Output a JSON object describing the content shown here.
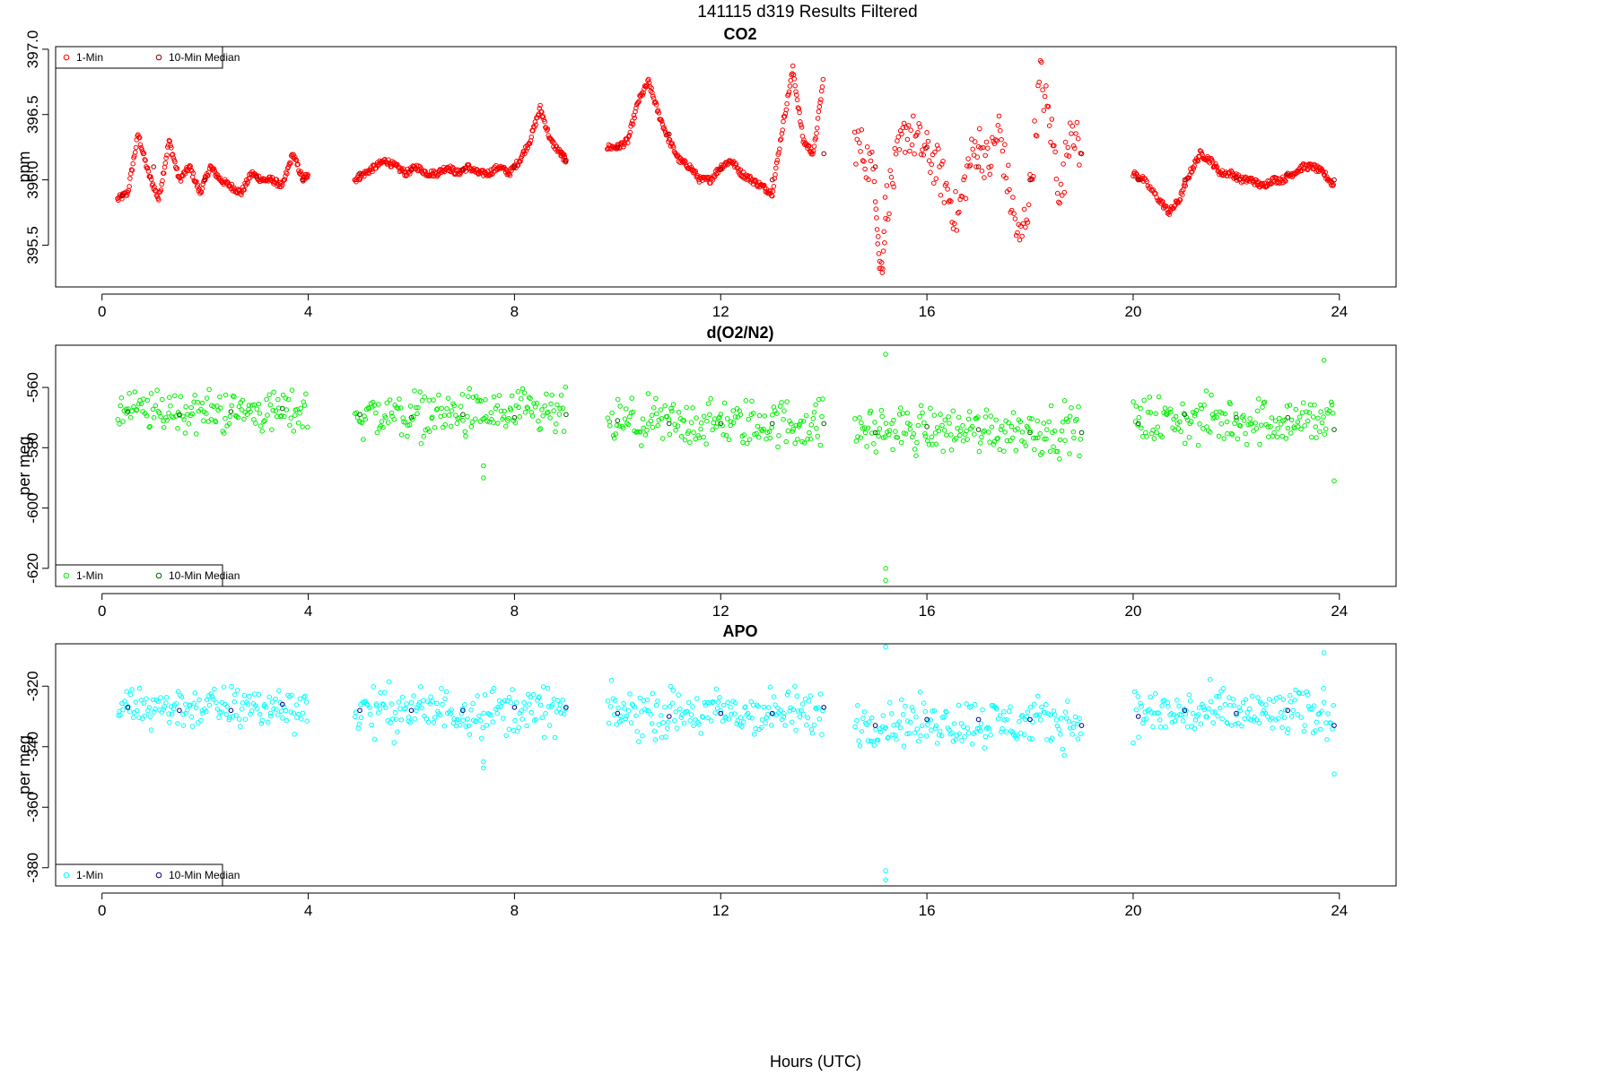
{
  "figure": {
    "title": "141115   d319   Results Filtered",
    "xlabel": "Hours (UTC)"
  },
  "chart_data": [
    {
      "type": "scatter",
      "title": "CO2",
      "xlabel": "Hours (UTC)",
      "ylabel": "ppm",
      "xlim": [
        -0.9,
        25.1
      ],
      "ylim": [
        395.18,
        397.02
      ],
      "xticks": [
        0,
        4,
        8,
        12,
        16,
        20,
        24
      ],
      "yticks": [
        395.5,
        396.0,
        396.5,
        397.0
      ],
      "ytick_labels": [
        "395.5",
        "396.0",
        "396.5",
        "397.0"
      ],
      "legend": {
        "placement": "top-left",
        "entries": [
          "1-Min",
          "10-Min Median"
        ]
      },
      "grid": false,
      "series": [
        {
          "name": "1-Min",
          "color": "#ff0000",
          "segments": [
            {
              "x": [
                0.3,
                0.5,
                0.7,
                0.9,
                1.1,
                1.3,
                1.5,
                1.7,
                1.9,
                2.1,
                2.3,
                2.5,
                2.7,
                2.9,
                3.1,
                3.3,
                3.5,
                3.7,
                3.9,
                4.0
              ],
              "y": [
                395.85,
                395.9,
                396.35,
                396.05,
                395.85,
                396.3,
                396.0,
                396.1,
                395.9,
                396.1,
                396.0,
                395.95,
                395.9,
                396.05,
                396.0,
                396.0,
                395.95,
                396.2,
                396.0,
                396.05
              ]
            },
            {
              "x": [
                4.9,
                5.1,
                5.3,
                5.5,
                5.7,
                5.9,
                6.1,
                6.3,
                6.5,
                6.7,
                6.9,
                7.1,
                7.3,
                7.5,
                7.7,
                7.9,
                8.1,
                8.3,
                8.5,
                8.7,
                8.9,
                9.0
              ],
              "y": [
                396.0,
                396.05,
                396.1,
                396.15,
                396.1,
                396.05,
                396.1,
                396.05,
                396.05,
                396.1,
                396.05,
                396.1,
                396.05,
                396.05,
                396.1,
                396.05,
                396.15,
                396.3,
                396.55,
                396.3,
                396.2,
                396.15
              ]
            },
            {
              "x": [
                9.8,
                10.0,
                10.2,
                10.4,
                10.6,
                10.8,
                11.0,
                11.2,
                11.4,
                11.6,
                11.8,
                12.0,
                12.2,
                12.4,
                12.6,
                12.8,
                13.0,
                13.2,
                13.4,
                13.6,
                13.8,
                14.0
              ],
              "y": [
                396.25,
                396.25,
                396.3,
                396.6,
                396.75,
                396.5,
                396.3,
                396.15,
                396.1,
                396.0,
                396.0,
                396.1,
                396.15,
                396.05,
                396.0,
                395.95,
                395.9,
                396.4,
                396.85,
                396.3,
                396.2,
                396.8
              ]
            },
            {
              "x": [
                14.6,
                14.8,
                15.0,
                15.1,
                15.2,
                15.4,
                15.6,
                15.8,
                16.0,
                16.2,
                16.4,
                16.6,
                16.8,
                17.0,
                17.2,
                17.4,
                17.6,
                17.8,
                18.0,
                18.2,
                18.4,
                18.6,
                18.8,
                19.0
              ],
              "y": [
                396.3,
                396.2,
                396.0,
                395.2,
                395.8,
                396.1,
                396.4,
                396.3,
                396.2,
                396.1,
                395.9,
                395.7,
                396.1,
                396.3,
                396.1,
                396.4,
                395.9,
                395.5,
                395.9,
                396.8,
                396.4,
                395.85,
                396.5,
                396.1
              ]
            },
            {
              "x": [
                20.0,
                20.2,
                20.5,
                20.7,
                20.9,
                21.1,
                21.3,
                21.5,
                21.7,
                21.9,
                22.1,
                22.3,
                22.5,
                22.7,
                22.9,
                23.1,
                23.3,
                23.5,
                23.7,
                23.9
              ],
              "y": [
                396.05,
                396.0,
                395.85,
                395.75,
                395.85,
                396.05,
                396.2,
                396.15,
                396.05,
                396.05,
                396.0,
                396.0,
                395.95,
                396.0,
                396.0,
                396.05,
                396.1,
                396.1,
                396.05,
                395.95
              ]
            }
          ]
        },
        {
          "name": "10-Min Median",
          "color": "#8b0000",
          "x": [
            0.4,
            1.0,
            2.0,
            3.0,
            3.9,
            5.0,
            6.0,
            7.0,
            8.0,
            9.0,
            10.0,
            11.0,
            12.0,
            13.0,
            14.0,
            15.0,
            16.0,
            17.0,
            18.0,
            19.0,
            20.1,
            21.0,
            22.0,
            23.0,
            23.9
          ],
          "y": [
            395.88,
            396.1,
            396.0,
            396.02,
            396.0,
            396.05,
            396.08,
            396.08,
            396.1,
            396.15,
            396.25,
            396.35,
            396.08,
            396.0,
            396.2,
            396.1,
            396.25,
            396.1,
            396.0,
            396.2,
            396.0,
            396.0,
            396.02,
            396.05,
            396.0
          ]
        }
      ]
    },
    {
      "type": "scatter",
      "title": "d(O2/N2)",
      "xlabel": "Hours (UTC)",
      "ylabel": "per meg",
      "xlim": [
        -0.9,
        25.1
      ],
      "ylim": [
        -626,
        -546
      ],
      "xticks": [
        0,
        4,
        8,
        12,
        16,
        20,
        24
      ],
      "yticks": [
        -620,
        -600,
        -580,
        -560
      ],
      "ytick_labels": [
        "-620",
        "-600",
        "-580",
        "-560"
      ],
      "legend": {
        "placement": "bottom-left",
        "entries": [
          "1-Min",
          "10-Min Median"
        ]
      },
      "grid": false,
      "series": [
        {
          "name": "1-Min",
          "color": "#00ee00",
          "segments": [
            {
              "x_range": [
                0.3,
                4.0
              ],
              "center": -568,
              "spread": 8
            },
            {
              "x_range": [
                4.9,
                9.0
              ],
              "center": -569,
              "spread": 9
            },
            {
              "x_range": [
                9.8,
                14.0
              ],
              "center": -572,
              "spread": 9
            },
            {
              "x_range": [
                14.6,
                19.0
              ],
              "center": -574,
              "spread": 9
            },
            {
              "x_range": [
                20.0,
                23.9
              ],
              "center": -571,
              "spread": 9
            }
          ],
          "outliers": {
            "x": [
              15.2,
              15.2,
              15.2,
              7.4,
              7.4,
              23.9,
              23.7
            ],
            "y": [
              -624,
              -620,
              -549,
              -590,
              -586,
              -591,
              -551
            ]
          }
        },
        {
          "name": "10-Min Median",
          "color": "#006400",
          "x": [
            0.5,
            1.5,
            2.5,
            3.5,
            5.0,
            6.0,
            7.0,
            8.0,
            9.0,
            10.0,
            11.0,
            12.0,
            13.0,
            14.0,
            15.0,
            16.0,
            17.0,
            18.0,
            19.0,
            20.1,
            21.0,
            22.0,
            23.0,
            23.9
          ],
          "y": [
            -568,
            -569,
            -568,
            -567,
            -569,
            -570,
            -569,
            -570,
            -569,
            -571,
            -572,
            -572,
            -572,
            -572,
            -575,
            -573,
            -574,
            -575,
            -575,
            -572,
            -569,
            -570,
            -570,
            -574
          ]
        }
      ]
    },
    {
      "type": "scatter",
      "title": "APO",
      "xlabel": "Hours (UTC)",
      "ylabel": "per meg",
      "xlim": [
        -0.9,
        25.1
      ],
      "ylim": [
        -386,
        -306
      ],
      "xticks": [
        0,
        4,
        8,
        12,
        16,
        20,
        24
      ],
      "yticks": [
        -380,
        -360,
        -340,
        -320
      ],
      "ytick_labels": [
        "-380",
        "-360",
        "-340",
        "-320"
      ],
      "legend": {
        "placement": "bottom-left",
        "entries": [
          "1-Min",
          "10-Min Median"
        ]
      },
      "grid": false,
      "series": [
        {
          "name": "1-Min",
          "color": "#00ffff",
          "segments": [
            {
              "x_range": [
                0.3,
                4.0
              ],
              "center": -327,
              "spread": 8
            },
            {
              "x_range": [
                4.9,
                9.0
              ],
              "center": -328,
              "spread": 9
            },
            {
              "x_range": [
                9.8,
                14.0
              ],
              "center": -329,
              "spread": 9
            },
            {
              "x_range": [
                14.6,
                19.0
              ],
              "center": -332,
              "spread": 9
            },
            {
              "x_range": [
                20.0,
                23.9
              ],
              "center": -329,
              "spread": 9
            }
          ],
          "outliers": {
            "x": [
              15.2,
              15.2,
              15.2,
              7.4,
              7.4,
              23.9,
              23.7
            ],
            "y": [
              -384,
              -381,
              -307,
              -347,
              -345,
              -349,
              -309
            ]
          }
        },
        {
          "name": "10-Min Median",
          "color": "#00008b",
          "x": [
            0.5,
            1.5,
            2.5,
            3.5,
            5.0,
            6.0,
            7.0,
            8.0,
            9.0,
            10.0,
            11.0,
            12.0,
            13.0,
            14.0,
            15.0,
            16.0,
            17.0,
            18.0,
            19.0,
            20.1,
            21.0,
            22.0,
            23.0,
            23.9
          ],
          "y": [
            -327,
            -328,
            -328,
            -326,
            -328,
            -328,
            -328,
            -327,
            -327,
            -329,
            -330,
            -329,
            -329,
            -327,
            -333,
            -331,
            -331,
            -331,
            -333,
            -330,
            -328,
            -329,
            -328,
            -333
          ]
        }
      ]
    }
  ]
}
